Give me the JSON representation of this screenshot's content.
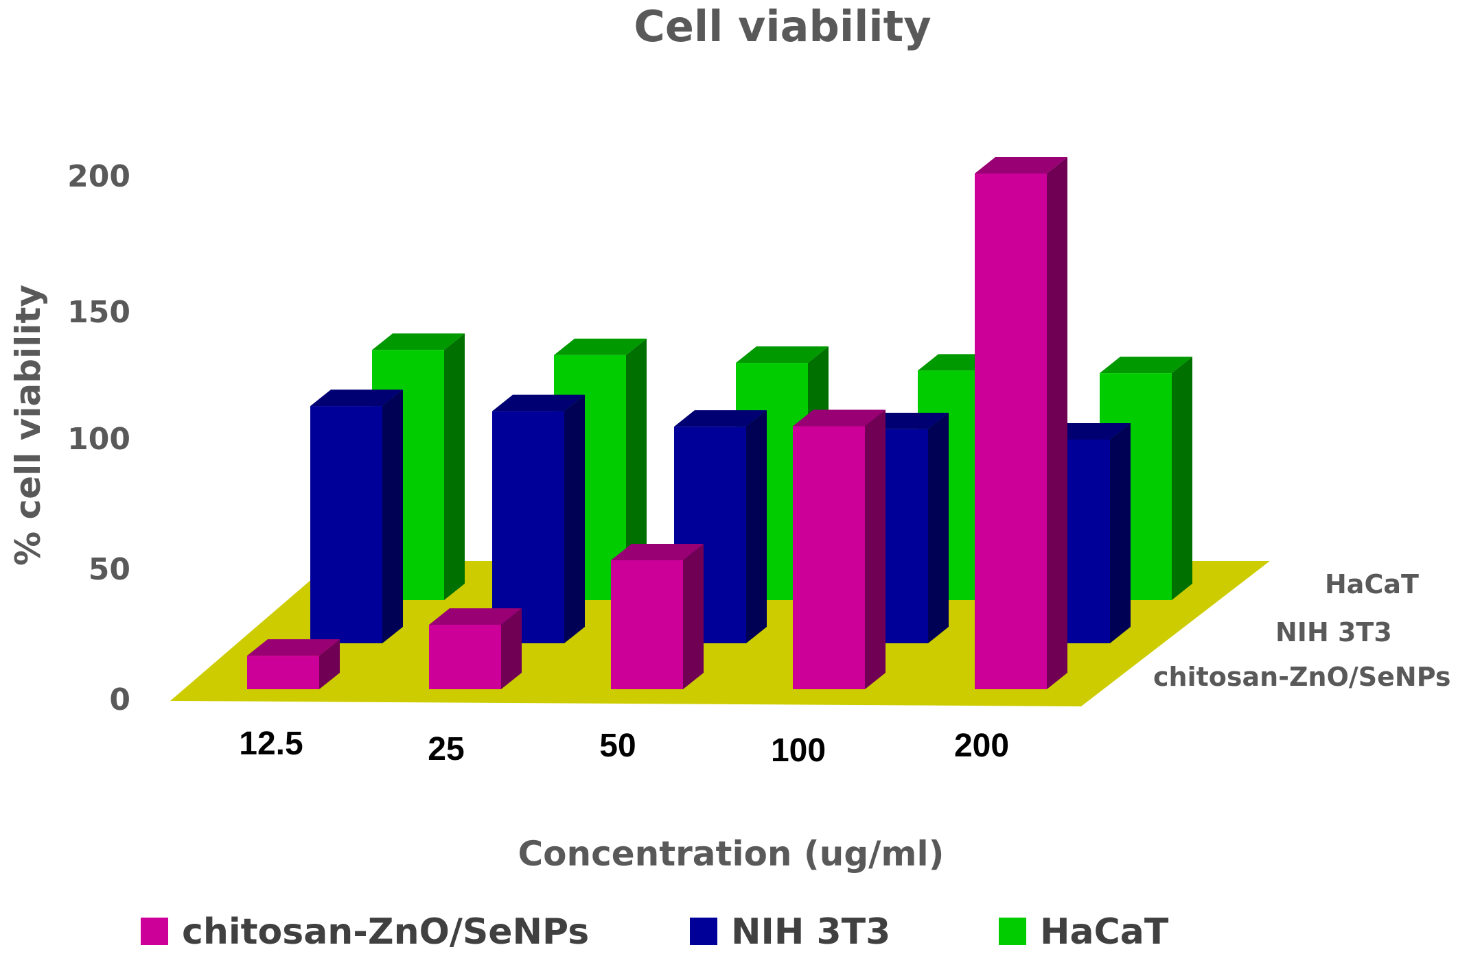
{
  "chart_data": {
    "type": "bar",
    "subtype": "3d-clustered",
    "title": "Cell viability",
    "xlabel": "Concentration (ug/ml)",
    "ylabel": "% cell viability",
    "categories": [
      "12.5",
      "25",
      "50",
      "100",
      "200"
    ],
    "yticks": [
      "0",
      "50",
      "100",
      "150",
      "200"
    ],
    "ylim": [
      0,
      200
    ],
    "depth_labels": [
      "HaCaT",
      "NIH 3T3",
      "chitosan-ZnO/SeNPs"
    ],
    "series": [
      {
        "name": "chitosan-ZnO/SeNPs",
        "color": "#CC0099",
        "values": [
          13,
          25,
          50,
          102,
          200
        ]
      },
      {
        "name": "NIH 3T3",
        "color": "#000099",
        "values": [
          92,
          90,
          84,
          83,
          79
        ]
      },
      {
        "name": "HaCaT",
        "color": "#00CC00",
        "values": [
          97,
          95,
          92,
          89,
          88
        ]
      }
    ],
    "floor_color": "#CCCC00",
    "legend_position": "bottom",
    "grid": false
  }
}
